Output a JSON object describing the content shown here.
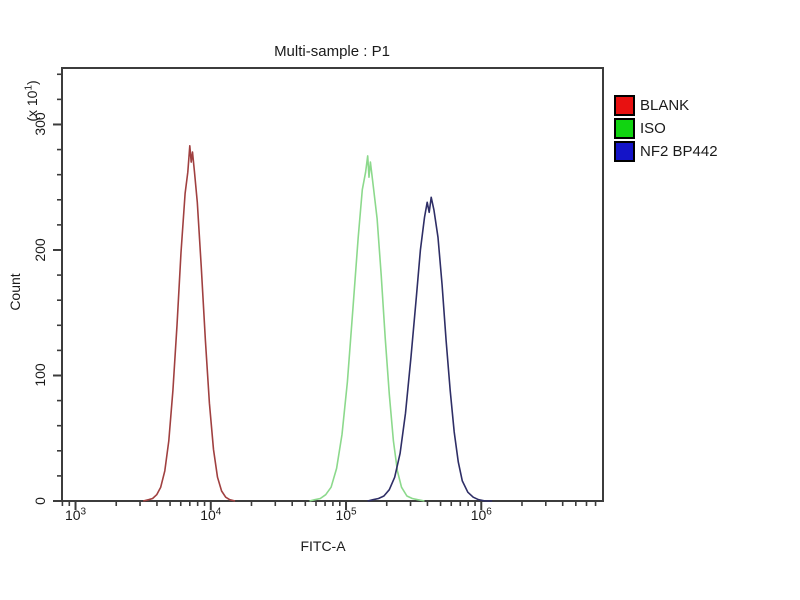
{
  "legend": {
    "items": [
      {
        "label": "BLANK",
        "color": "#e81111"
      },
      {
        "label": "ISO",
        "color": "#11d411"
      },
      {
        "label": "NF2 BP442",
        "color": "#1414c8"
      }
    ]
  },
  "chart_data": {
    "type": "line",
    "subtype": "flow-cytometry-overlay-histogram",
    "title": "Multi-sample : P1",
    "xlabel": "FITC-A",
    "ylabel": "Count",
    "ylabel_unit": {
      "prefix": "(x 10",
      "exp": "1",
      "suffix": ")"
    },
    "x_scale": "log10",
    "xlim_log": [
      2.9,
      6.9
    ],
    "ylim": [
      0,
      345
    ],
    "grid": false,
    "legend_position": "right-outside",
    "axis_color": "#3c3c3c",
    "x_ticks": [
      {
        "base": "10",
        "exp": "3",
        "log": 3
      },
      {
        "base": "10",
        "exp": "4",
        "log": 4
      },
      {
        "base": "10",
        "exp": "5",
        "log": 5
      },
      {
        "base": "10",
        "exp": "6",
        "log": 6
      }
    ],
    "x_minor_log": [
      2.903,
      2.954,
      3.301,
      3.477,
      3.602,
      3.699,
      3.778,
      3.845,
      3.903,
      3.954,
      4.301,
      4.477,
      4.602,
      4.699,
      4.778,
      4.845,
      4.903,
      4.954,
      5.301,
      5.477,
      5.602,
      5.699,
      5.778,
      5.845,
      5.903,
      5.954,
      6.301,
      6.477,
      6.602,
      6.699,
      6.778,
      6.845
    ],
    "y_ticks": [
      {
        "label": "0",
        "value": 0
      },
      {
        "label": "100",
        "value": 100
      },
      {
        "label": "200",
        "value": 200
      },
      {
        "label": "300",
        "value": 300
      }
    ],
    "y_minor": [
      20,
      40,
      60,
      80,
      120,
      140,
      160,
      180,
      220,
      240,
      260,
      280,
      320,
      340
    ],
    "series": [
      {
        "name": "BLANK",
        "color": "#a04040",
        "peak_x": 7200,
        "peak_count": 283,
        "points_log": [
          [
            3.5,
            0
          ],
          [
            3.54,
            1
          ],
          [
            3.57,
            2
          ],
          [
            3.6,
            5
          ],
          [
            3.63,
            11
          ],
          [
            3.66,
            24
          ],
          [
            3.69,
            48
          ],
          [
            3.72,
            88
          ],
          [
            3.75,
            140
          ],
          [
            3.78,
            198
          ],
          [
            3.81,
            245
          ],
          [
            3.83,
            262
          ],
          [
            3.845,
            283
          ],
          [
            3.855,
            270
          ],
          [
            3.865,
            278
          ],
          [
            3.88,
            262
          ],
          [
            3.9,
            238
          ],
          [
            3.93,
            186
          ],
          [
            3.96,
            128
          ],
          [
            3.99,
            78
          ],
          [
            4.02,
            41
          ],
          [
            4.05,
            19
          ],
          [
            4.08,
            8
          ],
          [
            4.11,
            3
          ],
          [
            4.14,
            1
          ],
          [
            4.18,
            0
          ]
        ]
      },
      {
        "name": "ISO",
        "color": "#8cd98c",
        "peak_x": 150000,
        "peak_count": 275,
        "points_log": [
          [
            4.73,
            0
          ],
          [
            4.77,
            1
          ],
          [
            4.81,
            2
          ],
          [
            4.85,
            5
          ],
          [
            4.89,
            11
          ],
          [
            4.93,
            26
          ],
          [
            4.97,
            53
          ],
          [
            5.01,
            95
          ],
          [
            5.05,
            152
          ],
          [
            5.09,
            210
          ],
          [
            5.12,
            248
          ],
          [
            5.145,
            262
          ],
          [
            5.16,
            275
          ],
          [
            5.17,
            258
          ],
          [
            5.18,
            270
          ],
          [
            5.2,
            252
          ],
          [
            5.23,
            225
          ],
          [
            5.26,
            180
          ],
          [
            5.29,
            130
          ],
          [
            5.32,
            85
          ],
          [
            5.35,
            48
          ],
          [
            5.38,
            24
          ],
          [
            5.41,
            11
          ],
          [
            5.45,
            4
          ],
          [
            5.49,
            2
          ],
          [
            5.53,
            1
          ],
          [
            5.58,
            0
          ]
        ]
      },
      {
        "name": "NF2 BP442",
        "color": "#2e2e66",
        "peak_x": 420000,
        "peak_count": 242,
        "points_log": [
          [
            5.16,
            0
          ],
          [
            5.2,
            1
          ],
          [
            5.24,
            2
          ],
          [
            5.28,
            4
          ],
          [
            5.32,
            9
          ],
          [
            5.36,
            19
          ],
          [
            5.4,
            38
          ],
          [
            5.44,
            70
          ],
          [
            5.48,
            114
          ],
          [
            5.52,
            163
          ],
          [
            5.55,
            200
          ],
          [
            5.58,
            226
          ],
          [
            5.6,
            238
          ],
          [
            5.615,
            230
          ],
          [
            5.63,
            242
          ],
          [
            5.65,
            232
          ],
          [
            5.68,
            210
          ],
          [
            5.71,
            172
          ],
          [
            5.74,
            128
          ],
          [
            5.77,
            88
          ],
          [
            5.8,
            55
          ],
          [
            5.83,
            31
          ],
          [
            5.86,
            16
          ],
          [
            5.9,
            7
          ],
          [
            5.94,
            3
          ],
          [
            5.98,
            1
          ],
          [
            6.03,
            0
          ],
          [
            6.08,
            0
          ]
        ]
      }
    ]
  }
}
